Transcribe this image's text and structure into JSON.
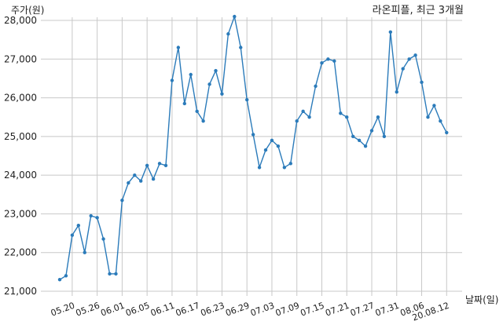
{
  "chart_data": {
    "type": "line",
    "title": "라온피플, 최근 3개월",
    "ylabel": "주가(원)",
    "xlabel": "날짜(일)",
    "ylim": [
      21000,
      28300
    ],
    "yticks": [
      21000,
      22000,
      23000,
      24000,
      25000,
      26000,
      27000,
      28000
    ],
    "ytick_labels": [
      "21,000",
      "22,000",
      "23,000",
      "24,000",
      "25,000",
      "26,000",
      "27,000",
      "28,000"
    ],
    "xtick_labels": [
      "05.20",
      "05.26",
      "06.01",
      "06.05",
      "06.11",
      "06.17",
      "06.23",
      "06.29",
      "07.03",
      "07.09",
      "07.15",
      "07.21",
      "07.27",
      "07.31",
      "08.06",
      "20.08.12"
    ],
    "xtick_index": [
      2,
      6,
      10,
      14,
      18,
      22,
      26,
      30,
      34,
      38,
      42,
      46,
      50,
      54,
      58,
      62
    ],
    "grid": true,
    "series": [
      {
        "color": "#2b7bba",
        "values": [
          21300,
          21400,
          22450,
          22700,
          22000,
          22950,
          22900,
          22350,
          21450,
          21450,
          23350,
          23800,
          24000,
          23850,
          24250,
          23900,
          24300,
          24250,
          26450,
          27300,
          25850,
          26600,
          25650,
          25400,
          26350,
          26700,
          26100,
          27650,
          28100,
          27300,
          25950,
          25050,
          24200,
          24650,
          24900,
          24750,
          24200,
          24300,
          25400,
          25650,
          25500,
          26300,
          26900,
          27000,
          26950,
          25600,
          25500,
          25000,
          24900,
          24750,
          25150,
          25500,
          25000,
          27700,
          26150,
          26750,
          27000,
          27100,
          26400,
          25500,
          25800,
          25400,
          25100
        ]
      }
    ]
  }
}
